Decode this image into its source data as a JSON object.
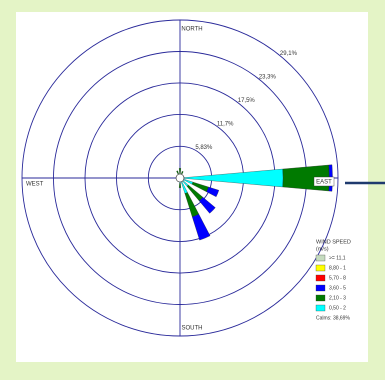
{
  "chart_data": {
    "type": "windrose",
    "compass": {
      "north": "NORTH",
      "east": "EAST",
      "south": "SOUTH",
      "west": "WEST"
    },
    "rlim": [
      0,
      29.1
    ],
    "rticks": [
      {
        "value": 5.83,
        "label": "5,83%"
      },
      {
        "value": 11.7,
        "label": "11,7%"
      },
      {
        "value": 17.5,
        "label": "17,5%"
      },
      {
        "value": 23.3,
        "label": "23,3%"
      },
      {
        "value": 29.1,
        "label": "29,1%"
      }
    ],
    "legend_title": [
      "WIND SPEED",
      "(m/s)"
    ],
    "series": [
      {
        "name": ">= 11,1",
        "color": "#c6dcc0",
        "values": [
          0,
          0,
          0,
          0,
          0,
          0,
          0,
          0,
          0,
          0,
          0,
          0,
          0,
          0,
          0,
          0
        ]
      },
      {
        "name": "8,80 - 1",
        "color": "#ffff00",
        "values": [
          0,
          0,
          0,
          0,
          0,
          0,
          0,
          0,
          0,
          0,
          0,
          0,
          0,
          0,
          0,
          0
        ]
      },
      {
        "name": "5,70 - 8",
        "color": "#ff0000",
        "values": [
          0,
          0,
          0,
          0,
          0,
          0,
          0,
          0,
          0,
          0,
          0,
          0,
          0,
          0,
          0,
          0
        ]
      },
      {
        "name": "3,60 - 5",
        "color": "#0000ff",
        "values": [
          0,
          0,
          0,
          0,
          0.6,
          2,
          3,
          4.5,
          0,
          0,
          0,
          0,
          0,
          0,
          0,
          0
        ]
      },
      {
        "name": "2,10 - 3",
        "color": "#007a00",
        "values": [
          1.2,
          0.8,
          0,
          0,
          8.5,
          3,
          3.5,
          4.5,
          0.8,
          0,
          0,
          0,
          0,
          0,
          0,
          0.8
        ]
      },
      {
        "name": "0,50 - 2",
        "color": "#00ffff",
        "values": [
          0.6,
          0.5,
          0,
          0,
          19,
          2.5,
          2,
          3,
          1,
          0,
          0,
          0,
          0,
          0,
          0,
          0.6
        ]
      }
    ],
    "calms": {
      "value": 38.69,
      "label": "Calms: 38,69%"
    }
  }
}
